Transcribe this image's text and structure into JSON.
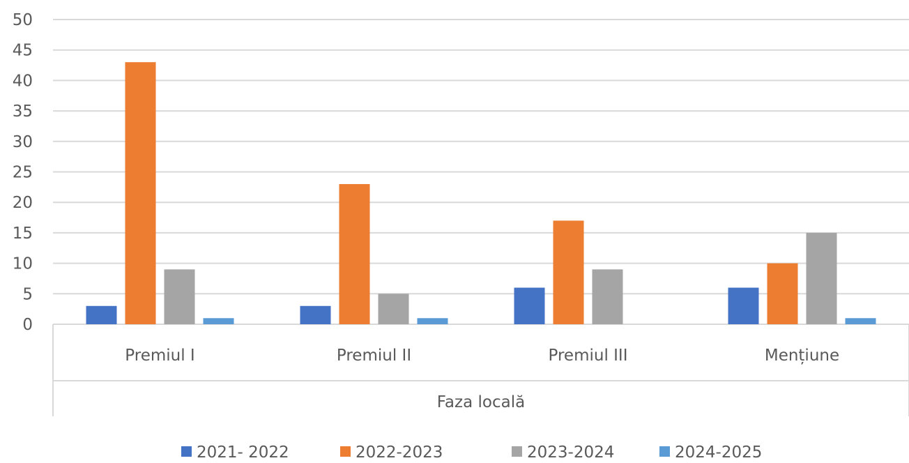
{
  "chart_data": {
    "type": "bar",
    "group_label": "Faza locală",
    "categories": [
      "Premiul I",
      "Premiul II",
      "Premiul III",
      "Mențiune"
    ],
    "series": [
      {
        "name": "2021- 2022",
        "color": "#4472c4",
        "values": [
          3,
          3,
          6,
          6
        ]
      },
      {
        "name": "2022-2023",
        "color": "#ed7d31",
        "values": [
          43,
          23,
          17,
          10
        ]
      },
      {
        "name": "2023-2024",
        "color": "#a5a5a5",
        "values": [
          9,
          5,
          9,
          15
        ]
      },
      {
        "name": "2024-2025",
        "color": "#5b9bd5",
        "values": [
          1,
          1,
          0,
          1
        ]
      }
    ],
    "y_ticks": [
      "0",
      "5",
      "10",
      "15",
      "20",
      "25",
      "30",
      "35",
      "40",
      "45",
      "50"
    ],
    "ylim": [
      0,
      50
    ],
    "grid": true,
    "legend_position": "bottom"
  }
}
